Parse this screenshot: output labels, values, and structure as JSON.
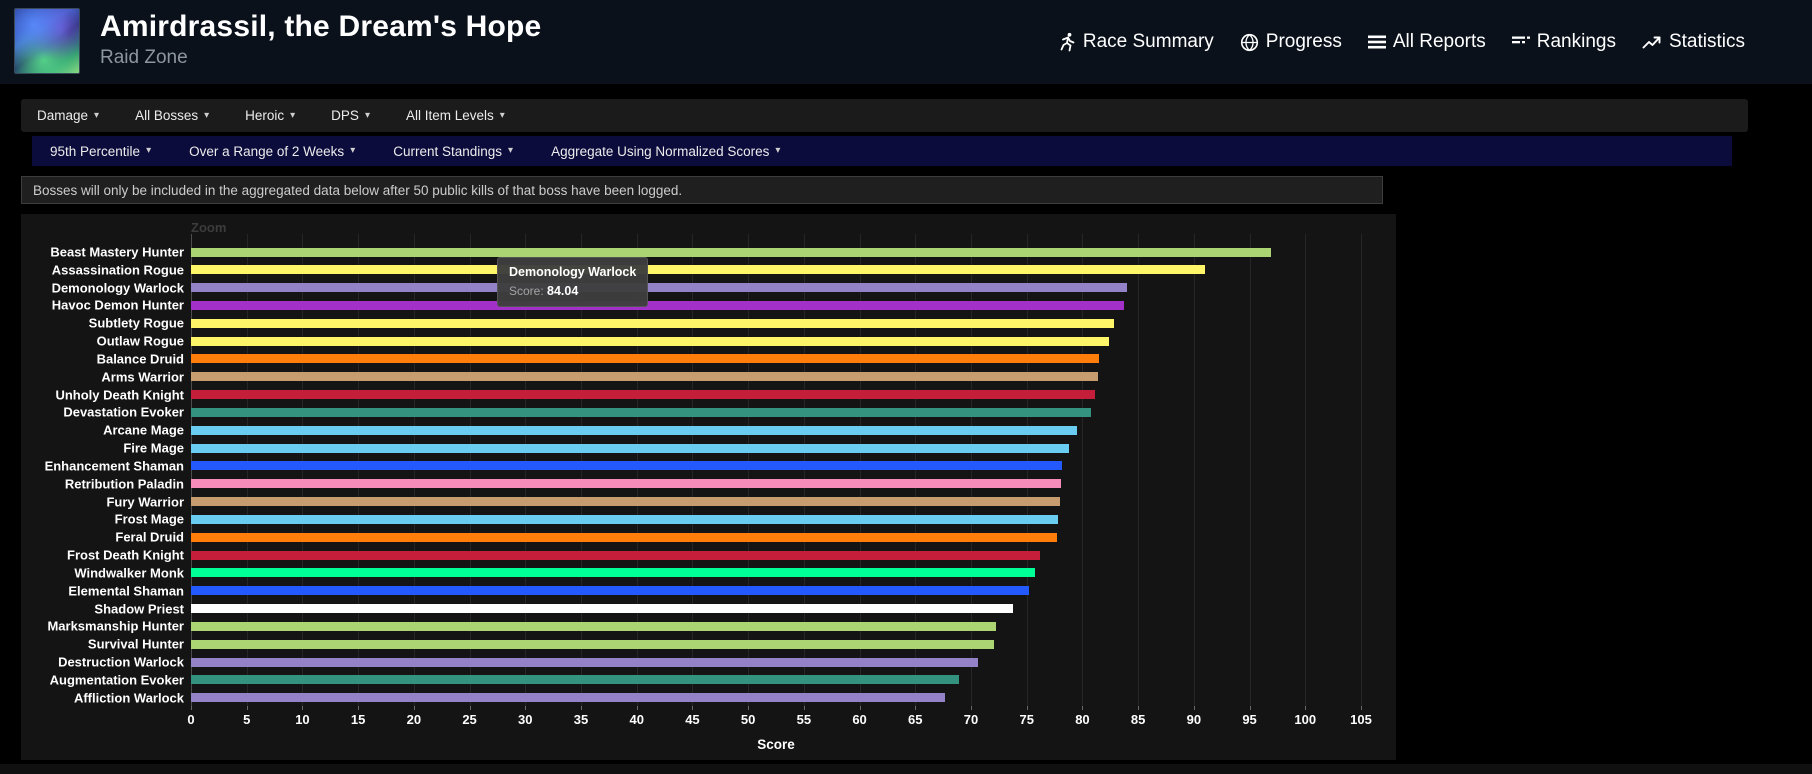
{
  "header": {
    "title": "Amirdrassil, the Dream's Hope",
    "subtitle": "Raid Zone",
    "nav": [
      {
        "label": "Race Summary",
        "icon": "runner-icon"
      },
      {
        "label": "Progress",
        "icon": "globe-icon"
      },
      {
        "label": "All Reports",
        "icon": "list-icon"
      },
      {
        "label": "Rankings",
        "icon": "rankings-icon"
      },
      {
        "label": "Statistics",
        "icon": "trend-icon"
      }
    ]
  },
  "filters": {
    "primary": [
      "Damage",
      "All Bosses",
      "Heroic",
      "DPS",
      "All Item Levels"
    ],
    "secondary": [
      "95th Percentile",
      "Over a Range of 2 Weeks",
      "Current Standings",
      "Aggregate Using Normalized Scores"
    ]
  },
  "notice": "Bosses will only be included in the aggregated data below after 50 public kills of that boss have been logged.",
  "chart_data": {
    "type": "bar",
    "orientation": "horizontal",
    "zoom_label": "Zoom",
    "xlabel": "Score",
    "xlim": [
      0,
      105
    ],
    "tick_interval": 5,
    "grid": true,
    "categories": [
      "Beast Mastery Hunter",
      "Assassination Rogue",
      "Demonology Warlock",
      "Havoc Demon Hunter",
      "Subtlety Rogue",
      "Outlaw Rogue",
      "Balance Druid",
      "Arms Warrior",
      "Unholy Death Knight",
      "Devastation Evoker",
      "Arcane Mage",
      "Fire Mage",
      "Enhancement Shaman",
      "Retribution Paladin",
      "Fury Warrior",
      "Frost Mage",
      "Feral Druid",
      "Frost Death Knight",
      "Windwalker Monk",
      "Elemental Shaman",
      "Shadow Priest",
      "Marksmanship Hunter",
      "Survival Hunter",
      "Destruction Warlock",
      "Augmentation Evoker",
      "Affliction Warlock"
    ],
    "values": [
      96.9,
      91.0,
      84.04,
      83.7,
      82.8,
      82.4,
      81.5,
      81.4,
      81.1,
      80.8,
      79.5,
      78.8,
      78.2,
      78.1,
      78.0,
      77.8,
      77.7,
      76.2,
      75.7,
      75.2,
      73.8,
      72.2,
      72.1,
      70.6,
      68.9,
      67.7
    ],
    "colors": [
      "#abd473",
      "#fff569",
      "#9482c9",
      "#a330c9",
      "#fff569",
      "#fff569",
      "#ff7d0a",
      "#c79c6e",
      "#c41e3a",
      "#33937f",
      "#69ccf0",
      "#69ccf0",
      "#2459ff",
      "#f58cba",
      "#c79c6e",
      "#69ccf0",
      "#ff7d0a",
      "#c41e3a",
      "#00ff96",
      "#2459ff",
      "#ffffff",
      "#abd473",
      "#abd473",
      "#9482c9",
      "#33937f",
      "#9482c9"
    ],
    "tooltip": {
      "title": "Demonology Warlock",
      "score_label": "Score:",
      "score_value": "84.04"
    }
  }
}
